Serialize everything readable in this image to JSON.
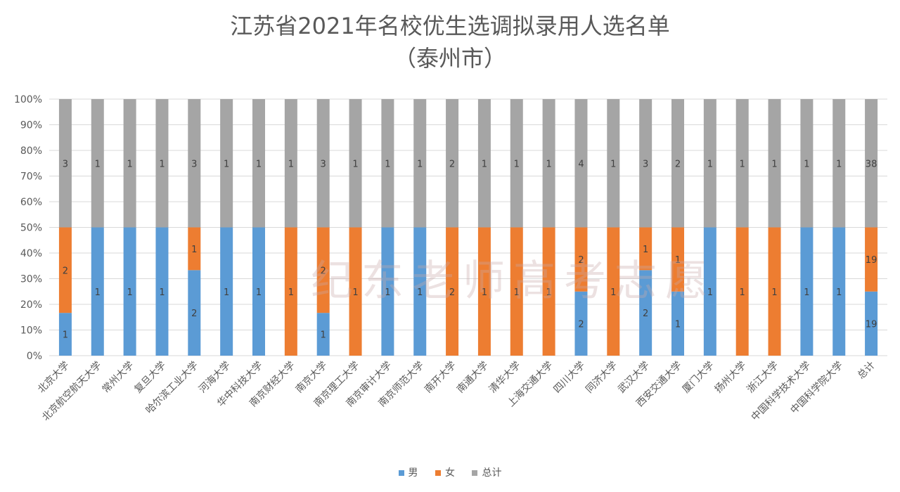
{
  "chart_data": {
    "type": "bar",
    "stacking": "percent",
    "title": "江苏省2021年名校优生选调拟录用人选名单",
    "subtitle": "（泰州市）",
    "categories": [
      "北京大学",
      "北京航空航天大学",
      "常州大学",
      "复旦大学",
      "哈尔滨工业大学",
      "河海大学",
      "华中科技大学",
      "南京财经大学",
      "南京大学",
      "南京理工大学",
      "南京审计大学",
      "南京师范大学",
      "南开大学",
      "南通大学",
      "清华大学",
      "上海交通大学",
      "四川大学",
      "同济大学",
      "武汉大学",
      "西安交通大学",
      "厦门大学",
      "扬州大学",
      "浙江大学",
      "中国科学技术大学",
      "中国科学院大学",
      "总计"
    ],
    "series": [
      {
        "name": "男",
        "color": "#5B9BD5",
        "values": [
          1,
          1,
          1,
          1,
          2,
          1,
          1,
          0,
          1,
          0,
          1,
          1,
          0,
          0,
          0,
          0,
          2,
          0,
          2,
          1,
          1,
          0,
          0,
          1,
          1,
          19
        ]
      },
      {
        "name": "女",
        "color": "#ED7D31",
        "values": [
          2,
          0,
          0,
          0,
          1,
          0,
          0,
          1,
          2,
          1,
          0,
          0,
          2,
          1,
          1,
          1,
          2,
          1,
          1,
          1,
          0,
          1,
          1,
          0,
          0,
          19
        ]
      },
      {
        "name": "总计",
        "color": "#A5A5A5",
        "values": [
          3,
          1,
          1,
          1,
          3,
          1,
          1,
          1,
          3,
          1,
          1,
          1,
          2,
          1,
          1,
          1,
          4,
          1,
          3,
          2,
          1,
          1,
          1,
          1,
          1,
          38
        ]
      }
    ],
    "yticks": [
      "0%",
      "10%",
      "20%",
      "30%",
      "40%",
      "50%",
      "60%",
      "70%",
      "80%",
      "90%",
      "100%"
    ],
    "ylim": [
      0,
      100
    ],
    "grid": true,
    "data_labels": true,
    "legend": "bottom"
  },
  "watermark": "纪东老师高考志愿"
}
